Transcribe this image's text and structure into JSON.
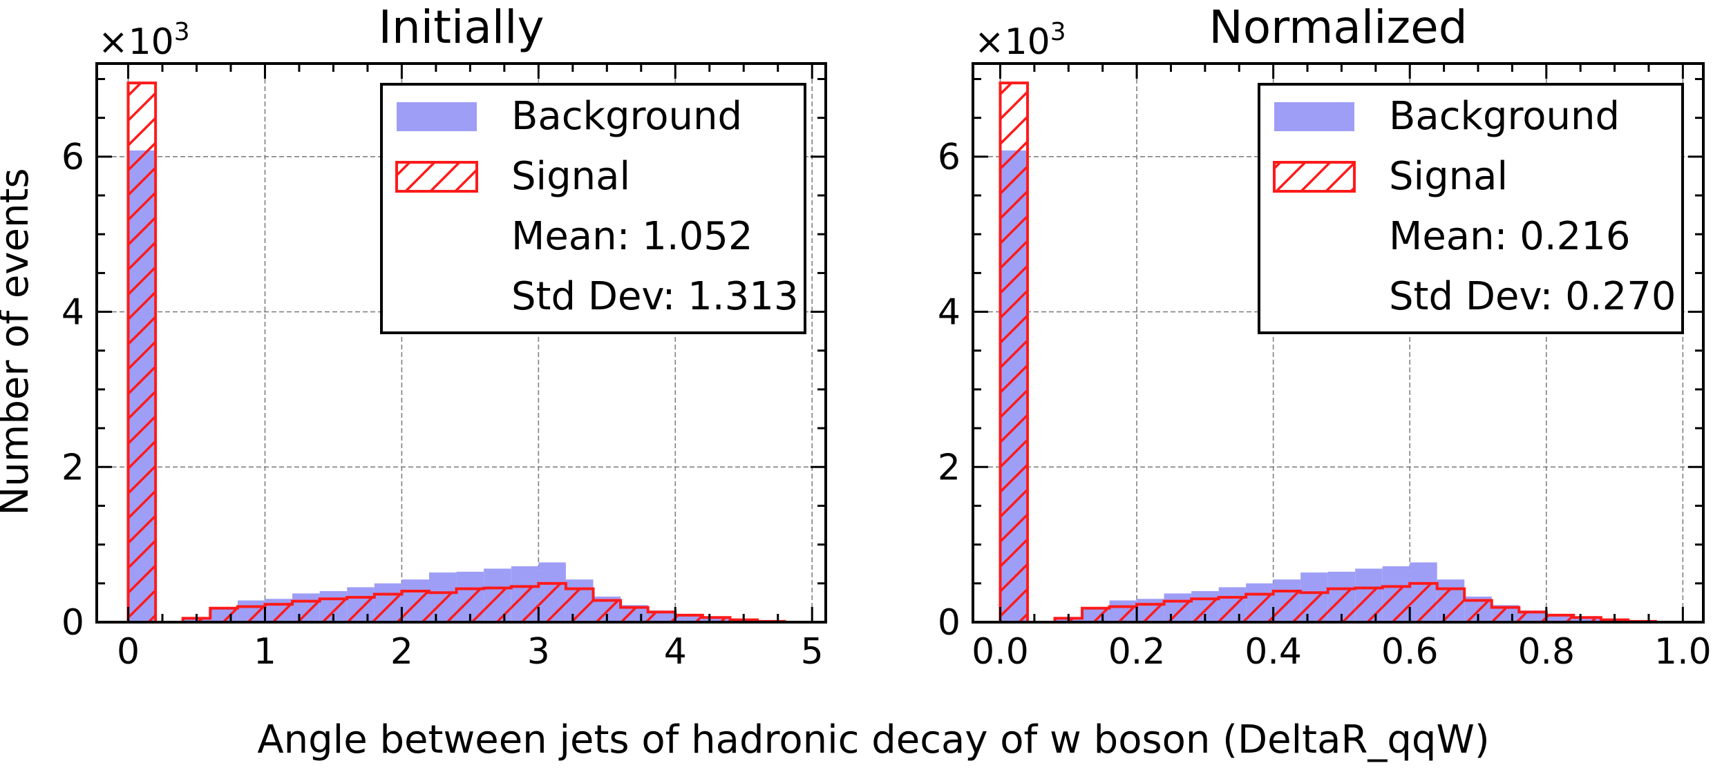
{
  "figure": {
    "ylabel": "Number of events",
    "xlabel": "Angle between jets of hadronic decay of w boson (DeltaR_qqW)"
  },
  "colors": {
    "background_fill": "#9e9ef7",
    "signal_edge": "#ff1a1a",
    "grid": "#808080"
  },
  "chart_data": [
    {
      "type": "bar",
      "title": "Initially",
      "multiplier_label": "×10",
      "multiplier_exp": "3",
      "bin_width": 0.2,
      "xlim": [
        -0.23,
        5.1
      ],
      "ylim": [
        0,
        7.2
      ],
      "xticks": [
        0,
        1,
        2,
        3,
        4,
        5
      ],
      "xtick_labels": [
        "0",
        "1",
        "2",
        "3",
        "4",
        "5"
      ],
      "yticks": [
        0,
        2,
        4,
        6
      ],
      "ytick_labels": [
        "0",
        "2",
        "4",
        "6"
      ],
      "grid": true,
      "legend_position": "top-right",
      "legend": {
        "background_label": "Background",
        "signal_label": "Signal",
        "mean_text": "Mean: 1.052",
        "std_text": "Std Dev: 1.313"
      },
      "series": [
        {
          "name": "Background",
          "bin_starts": [
            0.0,
            0.4,
            0.6,
            0.8,
            1.0,
            1.2,
            1.4,
            1.6,
            1.8,
            2.0,
            2.2,
            2.4,
            2.6,
            2.8,
            3.0,
            3.2,
            3.4,
            3.6,
            3.8,
            4.0,
            4.2,
            4.4,
            4.6
          ],
          "values": [
            6.08,
            0.05,
            0.17,
            0.28,
            0.3,
            0.37,
            0.4,
            0.45,
            0.5,
            0.55,
            0.64,
            0.65,
            0.69,
            0.72,
            0.77,
            0.55,
            0.33,
            0.22,
            0.15,
            0.1,
            0.05,
            0.03,
            0.02
          ]
        },
        {
          "name": "Signal",
          "bin_starts": [
            0.0,
            0.4,
            0.6,
            0.8,
            1.0,
            1.2,
            1.4,
            1.6,
            1.8,
            2.0,
            2.2,
            2.4,
            2.6,
            2.8,
            3.0,
            3.2,
            3.4,
            3.6,
            3.8,
            4.0,
            4.2,
            4.4,
            4.6
          ],
          "values": [
            6.95,
            0.05,
            0.18,
            0.2,
            0.23,
            0.27,
            0.3,
            0.32,
            0.36,
            0.4,
            0.38,
            0.43,
            0.44,
            0.46,
            0.5,
            0.43,
            0.28,
            0.19,
            0.13,
            0.09,
            0.06,
            0.03,
            0.01
          ]
        }
      ]
    },
    {
      "type": "bar",
      "title": "Normalized",
      "multiplier_label": "×10",
      "multiplier_exp": "3",
      "bin_width": 0.04,
      "xlim": [
        -0.04,
        1.03
      ],
      "ylim": [
        0,
        7.2
      ],
      "xticks": [
        0.0,
        0.2,
        0.4,
        0.6,
        0.8,
        1.0
      ],
      "xtick_labels": [
        "0.0",
        "0.2",
        "0.4",
        "0.6",
        "0.8",
        "1.0"
      ],
      "yticks": [
        0,
        2,
        4,
        6
      ],
      "ytick_labels": [
        "0",
        "2",
        "4",
        "6"
      ],
      "grid": true,
      "legend_position": "top-right",
      "legend": {
        "background_label": "Background",
        "signal_label": "Signal",
        "mean_text": "Mean: 0.216",
        "std_text": "Std Dev: 0.270"
      },
      "series": [
        {
          "name": "Background",
          "bin_starts": [
            0.0,
            0.08,
            0.12,
            0.16,
            0.2,
            0.24,
            0.28,
            0.32,
            0.36,
            0.4,
            0.44,
            0.48,
            0.52,
            0.56,
            0.6,
            0.64,
            0.68,
            0.72,
            0.76,
            0.8,
            0.84,
            0.88,
            0.92
          ],
          "values": [
            6.08,
            0.05,
            0.17,
            0.28,
            0.3,
            0.37,
            0.4,
            0.45,
            0.5,
            0.55,
            0.64,
            0.65,
            0.69,
            0.72,
            0.77,
            0.55,
            0.33,
            0.22,
            0.15,
            0.1,
            0.05,
            0.03,
            0.02
          ]
        },
        {
          "name": "Signal",
          "bin_starts": [
            0.0,
            0.08,
            0.12,
            0.16,
            0.2,
            0.24,
            0.28,
            0.32,
            0.36,
            0.4,
            0.44,
            0.48,
            0.52,
            0.56,
            0.6,
            0.64,
            0.68,
            0.72,
            0.76,
            0.8,
            0.84,
            0.88,
            0.92
          ],
          "values": [
            6.95,
            0.05,
            0.18,
            0.2,
            0.23,
            0.27,
            0.3,
            0.32,
            0.36,
            0.4,
            0.38,
            0.43,
            0.44,
            0.46,
            0.5,
            0.43,
            0.28,
            0.19,
            0.13,
            0.09,
            0.06,
            0.03,
            0.01
          ]
        }
      ]
    }
  ]
}
